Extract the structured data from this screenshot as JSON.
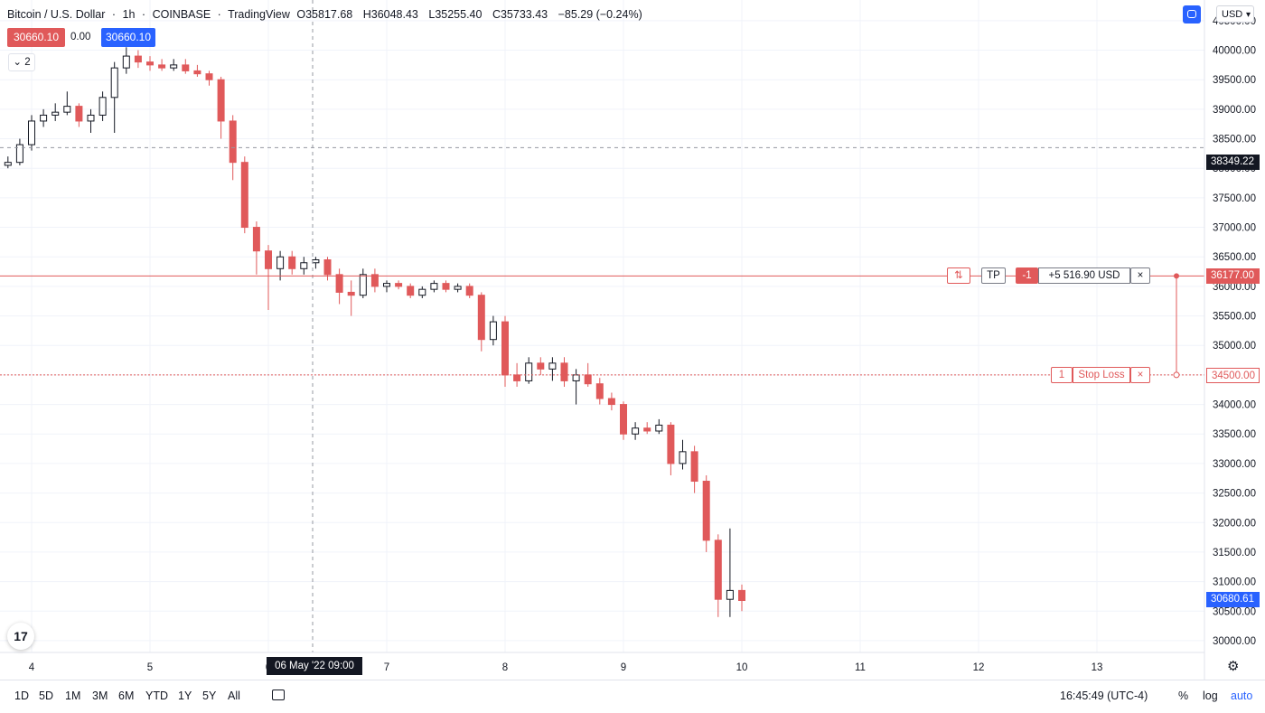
{
  "legend": {
    "symbol": "Bitcoin / U.S. Dollar",
    "interval": "1h",
    "exchange": "COINBASE",
    "source": "TradingView",
    "o_label": "O",
    "o": "35817.68",
    "h_label": "H",
    "h": "36048.43",
    "l_label": "L",
    "l": "35255.40",
    "c_label": "C",
    "c": "35733.43",
    "change": "−85.29 (−0.24%)"
  },
  "trade": {
    "sell": "30660.10",
    "spread": "0.00",
    "buy": "30660.10",
    "indicators_count": "2"
  },
  "currency": "USD",
  "price_tags": {
    "last_close_line": "38349.22",
    "current": "30680.61",
    "tp": "36177.00",
    "sl": "34500.00"
  },
  "orders": {
    "tp_reverse": "⇅",
    "tp_label": "TP",
    "tp_qty": "-1",
    "tp_pnl": "+5 516.90 USD",
    "close": "×",
    "sl_qty": "1",
    "sl_label": "Stop Loss"
  },
  "crosshair_date": "06 May '22   09:00",
  "colors": {
    "bear": "#e0595a",
    "bull": "#131722",
    "accent": "#2962ff",
    "grid": "#f0f3fa"
  },
  "ranges": [
    "1D",
    "5D",
    "1M",
    "3M",
    "6M",
    "YTD",
    "1Y",
    "5Y",
    "All"
  ],
  "bottom": {
    "time": "16:45:49 (UTC-4)",
    "percent": "%",
    "log": "log",
    "auto": "auto"
  },
  "logo_text": "17",
  "gear_icon": "gear-icon",
  "chart_data": {
    "type": "candlestick",
    "y_ticks": [
      "40500.00",
      "40000.00",
      "39500.00",
      "39000.00",
      "38500.00",
      "38000.00",
      "37500.00",
      "37000.00",
      "36500.00",
      "36000.00",
      "35500.00",
      "35000.00",
      "34500.00",
      "34000.00",
      "33500.00",
      "33000.00",
      "32500.00",
      "32000.00",
      "31500.00",
      "31000.00",
      "30500.00",
      "30000.00"
    ],
    "x_ticks": [
      "4",
      "5",
      "6",
      "7",
      "8",
      "9",
      "10",
      "11",
      "12",
      "13"
    ],
    "ylim": [
      29800,
      40850
    ],
    "series": [
      {
        "t": 3.4,
        "o": 37650,
        "h": 37800,
        "l": 37600,
        "c": 37750
      },
      {
        "t": 3.5,
        "o": 37750,
        "h": 37900,
        "l": 37700,
        "c": 37850
      },
      {
        "t": 3.6,
        "o": 37850,
        "h": 38000,
        "l": 37800,
        "c": 37950
      },
      {
        "t": 3.7,
        "o": 37950,
        "h": 38100,
        "l": 37900,
        "c": 38050
      },
      {
        "t": 3.8,
        "o": 38050,
        "h": 38200,
        "l": 38000,
        "c": 38100
      },
      {
        "t": 3.9,
        "o": 38100,
        "h": 38500,
        "l": 38050,
        "c": 38400
      },
      {
        "t": 4.0,
        "o": 38400,
        "h": 38900,
        "l": 38300,
        "c": 38800
      },
      {
        "t": 4.1,
        "o": 38800,
        "h": 39000,
        "l": 38700,
        "c": 38900
      },
      {
        "t": 4.2,
        "o": 38900,
        "h": 39100,
        "l": 38800,
        "c": 38950
      },
      {
        "t": 4.3,
        "o": 38950,
        "h": 39300,
        "l": 38900,
        "c": 39050
      },
      {
        "t": 4.4,
        "o": 39050,
        "h": 39100,
        "l": 38700,
        "c": 38800
      },
      {
        "t": 4.5,
        "o": 38800,
        "h": 39000,
        "l": 38600,
        "c": 38900
      },
      {
        "t": 4.6,
        "o": 38900,
        "h": 39300,
        "l": 38800,
        "c": 39200
      },
      {
        "t": 4.7,
        "o": 39200,
        "h": 39800,
        "l": 38600,
        "c": 39700
      },
      {
        "t": 4.8,
        "o": 39700,
        "h": 40050,
        "l": 39600,
        "c": 39900
      },
      {
        "t": 4.9,
        "o": 39900,
        "h": 40000,
        "l": 39700,
        "c": 39800
      },
      {
        "t": 5.0,
        "o": 39800,
        "h": 39900,
        "l": 39650,
        "c": 39750
      },
      {
        "t": 5.1,
        "o": 39750,
        "h": 39850,
        "l": 39650,
        "c": 39700
      },
      {
        "t": 5.2,
        "o": 39700,
        "h": 39850,
        "l": 39650,
        "c": 39750
      },
      {
        "t": 5.3,
        "o": 39750,
        "h": 39850,
        "l": 39600,
        "c": 39650
      },
      {
        "t": 5.4,
        "o": 39650,
        "h": 39750,
        "l": 39550,
        "c": 39600
      },
      {
        "t": 5.5,
        "o": 39600,
        "h": 39650,
        "l": 39400,
        "c": 39500
      },
      {
        "t": 5.6,
        "o": 39500,
        "h": 39550,
        "l": 38500,
        "c": 38800
      },
      {
        "t": 5.7,
        "o": 38800,
        "h": 38900,
        "l": 37800,
        "c": 38100
      },
      {
        "t": 5.8,
        "o": 38100,
        "h": 38200,
        "l": 36900,
        "c": 37000
      },
      {
        "t": 5.9,
        "o": 37000,
        "h": 37100,
        "l": 36200,
        "c": 36600
      },
      {
        "t": 6.0,
        "o": 36600,
        "h": 36700,
        "l": 35600,
        "c": 36300
      },
      {
        "t": 6.1,
        "o": 36300,
        "h": 36600,
        "l": 36100,
        "c": 36500
      },
      {
        "t": 6.2,
        "o": 36500,
        "h": 36600,
        "l": 36200,
        "c": 36300
      },
      {
        "t": 6.3,
        "o": 36300,
        "h": 36500,
        "l": 36200,
        "c": 36400
      },
      {
        "t": 6.4,
        "o": 36400,
        "h": 36500,
        "l": 36300,
        "c": 36450
      },
      {
        "t": 6.5,
        "o": 36450,
        "h": 36500,
        "l": 36100,
        "c": 36200
      },
      {
        "t": 6.6,
        "o": 36200,
        "h": 36300,
        "l": 35700,
        "c": 35900
      },
      {
        "t": 6.7,
        "o": 35900,
        "h": 36100,
        "l": 35500,
        "c": 35850
      },
      {
        "t": 6.8,
        "o": 35850,
        "h": 36300,
        "l": 35800,
        "c": 36200
      },
      {
        "t": 6.9,
        "o": 36200,
        "h": 36300,
        "l": 35900,
        "c": 36000
      },
      {
        "t": 7.0,
        "o": 36000,
        "h": 36100,
        "l": 35900,
        "c": 36050
      },
      {
        "t": 7.1,
        "o": 36050,
        "h": 36100,
        "l": 35950,
        "c": 36000
      },
      {
        "t": 7.2,
        "o": 36000,
        "h": 36050,
        "l": 35800,
        "c": 35850
      },
      {
        "t": 7.3,
        "o": 35850,
        "h": 36000,
        "l": 35800,
        "c": 35950
      },
      {
        "t": 7.4,
        "o": 35950,
        "h": 36100,
        "l": 35900,
        "c": 36050
      },
      {
        "t": 7.5,
        "o": 36050,
        "h": 36100,
        "l": 35900,
        "c": 35950
      },
      {
        "t": 7.6,
        "o": 35950,
        "h": 36050,
        "l": 35900,
        "c": 36000
      },
      {
        "t": 7.7,
        "o": 36000,
        "h": 36050,
        "l": 35800,
        "c": 35850
      },
      {
        "t": 7.8,
        "o": 35850,
        "h": 35900,
        "l": 34900,
        "c": 35100
      },
      {
        "t": 7.9,
        "o": 35100,
        "h": 35500,
        "l": 35000,
        "c": 35400
      },
      {
        "t": 8.0,
        "o": 35400,
        "h": 35500,
        "l": 34300,
        "c": 34500
      },
      {
        "t": 8.1,
        "o": 34500,
        "h": 34700,
        "l": 34300,
        "c": 34400
      },
      {
        "t": 8.2,
        "o": 34400,
        "h": 34800,
        "l": 34350,
        "c": 34700
      },
      {
        "t": 8.3,
        "o": 34700,
        "h": 34800,
        "l": 34500,
        "c": 34600
      },
      {
        "t": 8.4,
        "o": 34600,
        "h": 34800,
        "l": 34400,
        "c": 34700
      },
      {
        "t": 8.5,
        "o": 34700,
        "h": 34800,
        "l": 34300,
        "c": 34400
      },
      {
        "t": 8.6,
        "o": 34400,
        "h": 34600,
        "l": 34000,
        "c": 34500
      },
      {
        "t": 8.7,
        "o": 34500,
        "h": 34700,
        "l": 34300,
        "c": 34350
      },
      {
        "t": 8.8,
        "o": 34350,
        "h": 34450,
        "l": 34000,
        "c": 34100
      },
      {
        "t": 8.9,
        "o": 34100,
        "h": 34200,
        "l": 33900,
        "c": 34000
      },
      {
        "t": 9.0,
        "o": 34000,
        "h": 34050,
        "l": 33400,
        "c": 33500
      },
      {
        "t": 9.1,
        "o": 33500,
        "h": 33700,
        "l": 33400,
        "c": 33600
      },
      {
        "t": 9.2,
        "o": 33600,
        "h": 33700,
        "l": 33500,
        "c": 33550
      },
      {
        "t": 9.3,
        "o": 33550,
        "h": 33750,
        "l": 33500,
        "c": 33650
      },
      {
        "t": 9.4,
        "o": 33650,
        "h": 33700,
        "l": 32800,
        "c": 33000
      },
      {
        "t": 9.5,
        "o": 33000,
        "h": 33400,
        "l": 32900,
        "c": 33200
      },
      {
        "t": 9.6,
        "o": 33200,
        "h": 33300,
        "l": 32500,
        "c": 32700
      },
      {
        "t": 9.7,
        "o": 32700,
        "h": 32800,
        "l": 31500,
        "c": 31700
      },
      {
        "t": 9.8,
        "o": 31700,
        "h": 31800,
        "l": 30400,
        "c": 30700
      },
      {
        "t": 9.9,
        "o": 30700,
        "h": 31900,
        "l": 30400,
        "c": 30850
      },
      {
        "t": 10.0,
        "o": 30850,
        "h": 30950,
        "l": 30500,
        "c": 30680
      }
    ]
  }
}
